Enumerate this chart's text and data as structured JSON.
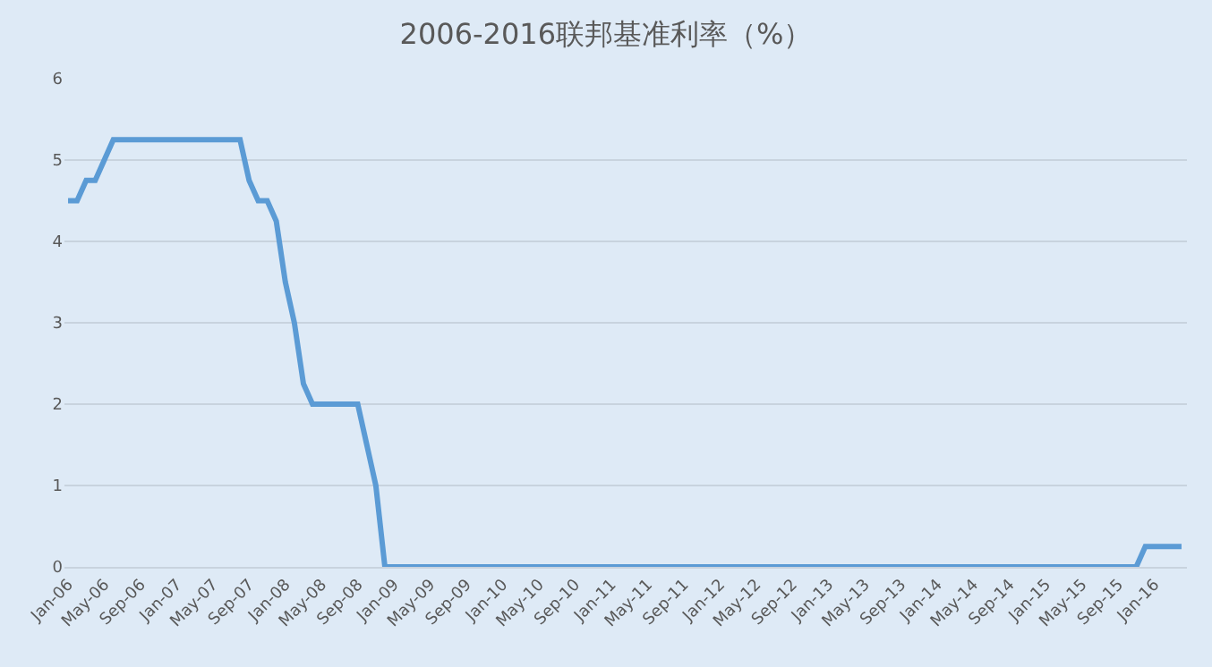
{
  "chart_data": {
    "type": "line",
    "title": "2006-2016联邦基准利率（%）",
    "categories": [
      "Jan-06",
      null,
      null,
      null,
      "May-06",
      null,
      null,
      null,
      "Sep-06",
      null,
      null,
      null,
      "Jan-07",
      null,
      null,
      null,
      "May-07",
      null,
      null,
      null,
      "Sep-07",
      null,
      null,
      null,
      "Jan-08",
      null,
      null,
      null,
      "May-08",
      null,
      null,
      null,
      "Sep-08",
      null,
      null,
      null,
      "Jan-09",
      null,
      null,
      null,
      "May-09",
      null,
      null,
      null,
      "Sep-09",
      null,
      null,
      null,
      "Jan-10",
      null,
      null,
      null,
      "May-10",
      null,
      null,
      null,
      "Sep-10",
      null,
      null,
      null,
      "Jan-11",
      null,
      null,
      null,
      "May-11",
      null,
      null,
      null,
      "Sep-11",
      null,
      null,
      null,
      "Jan-12",
      null,
      null,
      null,
      "May-12",
      null,
      null,
      null,
      "Sep-12",
      null,
      null,
      null,
      "Jan-13",
      null,
      null,
      null,
      "May-13",
      null,
      null,
      null,
      "Sep-13",
      null,
      null,
      null,
      "Jan-14",
      null,
      null,
      null,
      "May-14",
      null,
      null,
      null,
      "Sep-14",
      null,
      null,
      null,
      "Jan-15",
      null,
      null,
      null,
      "May-15",
      null,
      null,
      null,
      "Sep-15",
      null,
      null,
      null,
      "Jan-16",
      null,
      null,
      null
    ],
    "series": [
      {
        "color": "#5b9bd5",
        "values": [
          4.5,
          4.5,
          4.75,
          4.75,
          5,
          5.25,
          5.25,
          5.25,
          5.25,
          5.25,
          5.25,
          5.25,
          5.25,
          5.25,
          5.25,
          5.25,
          5.25,
          5.25,
          5.25,
          5.25,
          4.75,
          4.5,
          4.5,
          4.25,
          3.5,
          3,
          2.25,
          2,
          2,
          2,
          2,
          2,
          2,
          1.5,
          1,
          0,
          0,
          0,
          0,
          0,
          0,
          0,
          0,
          0,
          0,
          0,
          0,
          0,
          0,
          0,
          0,
          0,
          0,
          0,
          0,
          0,
          0,
          0,
          0,
          0,
          0,
          0,
          0,
          0,
          0,
          0,
          0,
          0,
          0,
          0,
          0,
          0,
          0,
          0,
          0,
          0,
          0,
          0,
          0,
          0,
          0,
          0,
          0,
          0,
          0,
          0,
          0,
          0,
          0,
          0,
          0,
          0,
          0,
          0,
          0,
          0,
          0,
          0,
          0,
          0,
          0,
          0,
          0,
          0,
          0,
          0,
          0,
          0,
          0,
          0,
          0,
          0,
          0,
          0,
          0,
          0,
          0,
          0,
          0,
          0.25,
          0.25,
          0.25,
          0.25,
          0.25
        ]
      }
    ],
    "ylim": [
      0,
      6
    ],
    "yticks": [
      0,
      1,
      2,
      3,
      4,
      5,
      6
    ],
    "grid": "y",
    "marker": "none",
    "line_style": "solid"
  }
}
